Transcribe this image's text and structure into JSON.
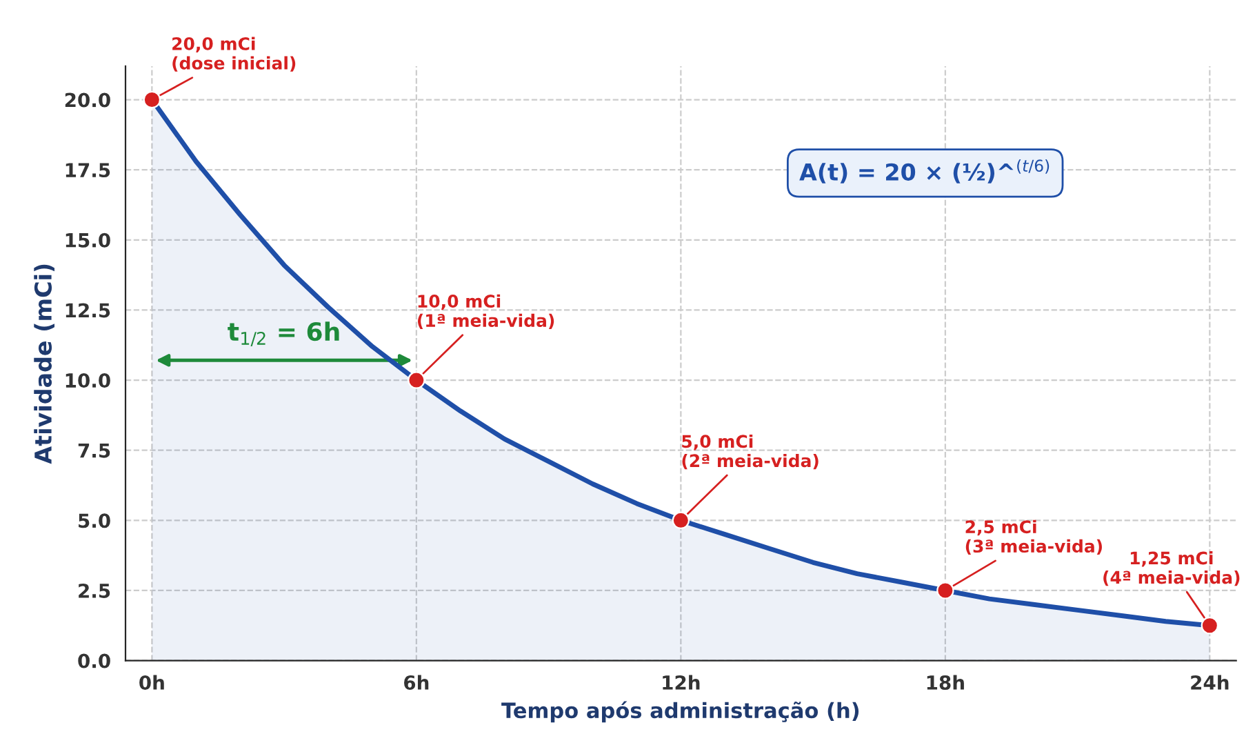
{
  "chart_data": {
    "type": "area",
    "xlabel": "Tempo após administração (h)",
    "ylabel": "Atividade (mCi)",
    "xlim": [
      -0.6,
      24.6
    ],
    "ylim": [
      0,
      21.2
    ],
    "xticks": [
      {
        "value": 0,
        "label": "0h"
      },
      {
        "value": 6,
        "label": "6h"
      },
      {
        "value": 12,
        "label": "12h"
      },
      {
        "value": 18,
        "label": "18h"
      },
      {
        "value": 24,
        "label": "24h"
      }
    ],
    "yticks": [
      {
        "value": 0,
        "label": "0.0"
      },
      {
        "value": 2.5,
        "label": "2.5"
      },
      {
        "value": 5,
        "label": "5.0"
      },
      {
        "value": 7.5,
        "label": "7.5"
      },
      {
        "value": 10,
        "label": "10.0"
      },
      {
        "value": 12.5,
        "label": "12.5"
      },
      {
        "value": 15,
        "label": "15.0"
      },
      {
        "value": 17.5,
        "label": "17.5"
      },
      {
        "value": 20,
        "label": "20.0"
      }
    ],
    "grid": true,
    "series": [
      {
        "color": "#1f4fa8",
        "x": [
          0,
          1,
          2,
          3,
          4,
          5,
          6,
          7,
          8,
          9,
          10,
          11,
          12,
          13,
          14,
          15,
          16,
          17,
          18,
          19,
          20,
          21,
          22,
          23,
          24
        ],
        "values": [
          20,
          17.8,
          15.9,
          14.1,
          12.6,
          11.2,
          10,
          8.9,
          7.9,
          7.1,
          6.3,
          5.6,
          5,
          4.5,
          4,
          3.5,
          3.1,
          2.8,
          2.5,
          2.2,
          2,
          1.8,
          1.6,
          1.4,
          1.25
        ]
      },
      {
        "type": "scatter",
        "color": "#d62020",
        "marker": "circle",
        "x": [
          0,
          6,
          12,
          18,
          24
        ],
        "values": [
          20,
          10,
          5,
          2.5,
          1.25
        ]
      }
    ],
    "annotations": [
      {
        "text": "20,0 mCi\n(dose inicial)",
        "x": 0,
        "y": 20
      },
      {
        "text": "10,0 mCi\n(1ª meia-vida)",
        "x": 6,
        "y": 10
      },
      {
        "text": "5,0 mCi\n(2ª meia-vida)",
        "x": 12,
        "y": 5
      },
      {
        "text": "2,5 mCi\n(3ª meia-vida)",
        "x": 18,
        "y": 2.5
      },
      {
        "text": "1,25 mCi\n(4ª meia-vida)",
        "x": 24,
        "y": 1.25
      },
      "A(t) = 20 × (½)^$^{(t/6)}$",
      "t$_{1/2}$ = 6h"
    ]
  }
}
